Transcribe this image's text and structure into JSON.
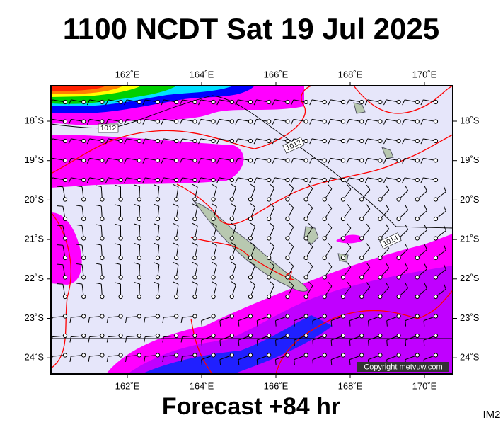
{
  "header": {
    "title": "1100 NCDT Sat 19 Jul 2025"
  },
  "map": {
    "lon_labels": [
      "162˚E",
      "164˚E",
      "166˚E",
      "168˚E",
      "170˚E"
    ],
    "lat_labels": [
      "18˚S",
      "19˚S",
      "20˚S",
      "21˚S",
      "22˚S",
      "23˚S",
      "24˚S"
    ],
    "isobar_labels": [
      "1012",
      "1012",
      "1014"
    ],
    "copyright": "Copyright metvuw.com"
  },
  "footer": {
    "forecast": "Forecast +84 hr",
    "image_id": "IM2"
  }
}
